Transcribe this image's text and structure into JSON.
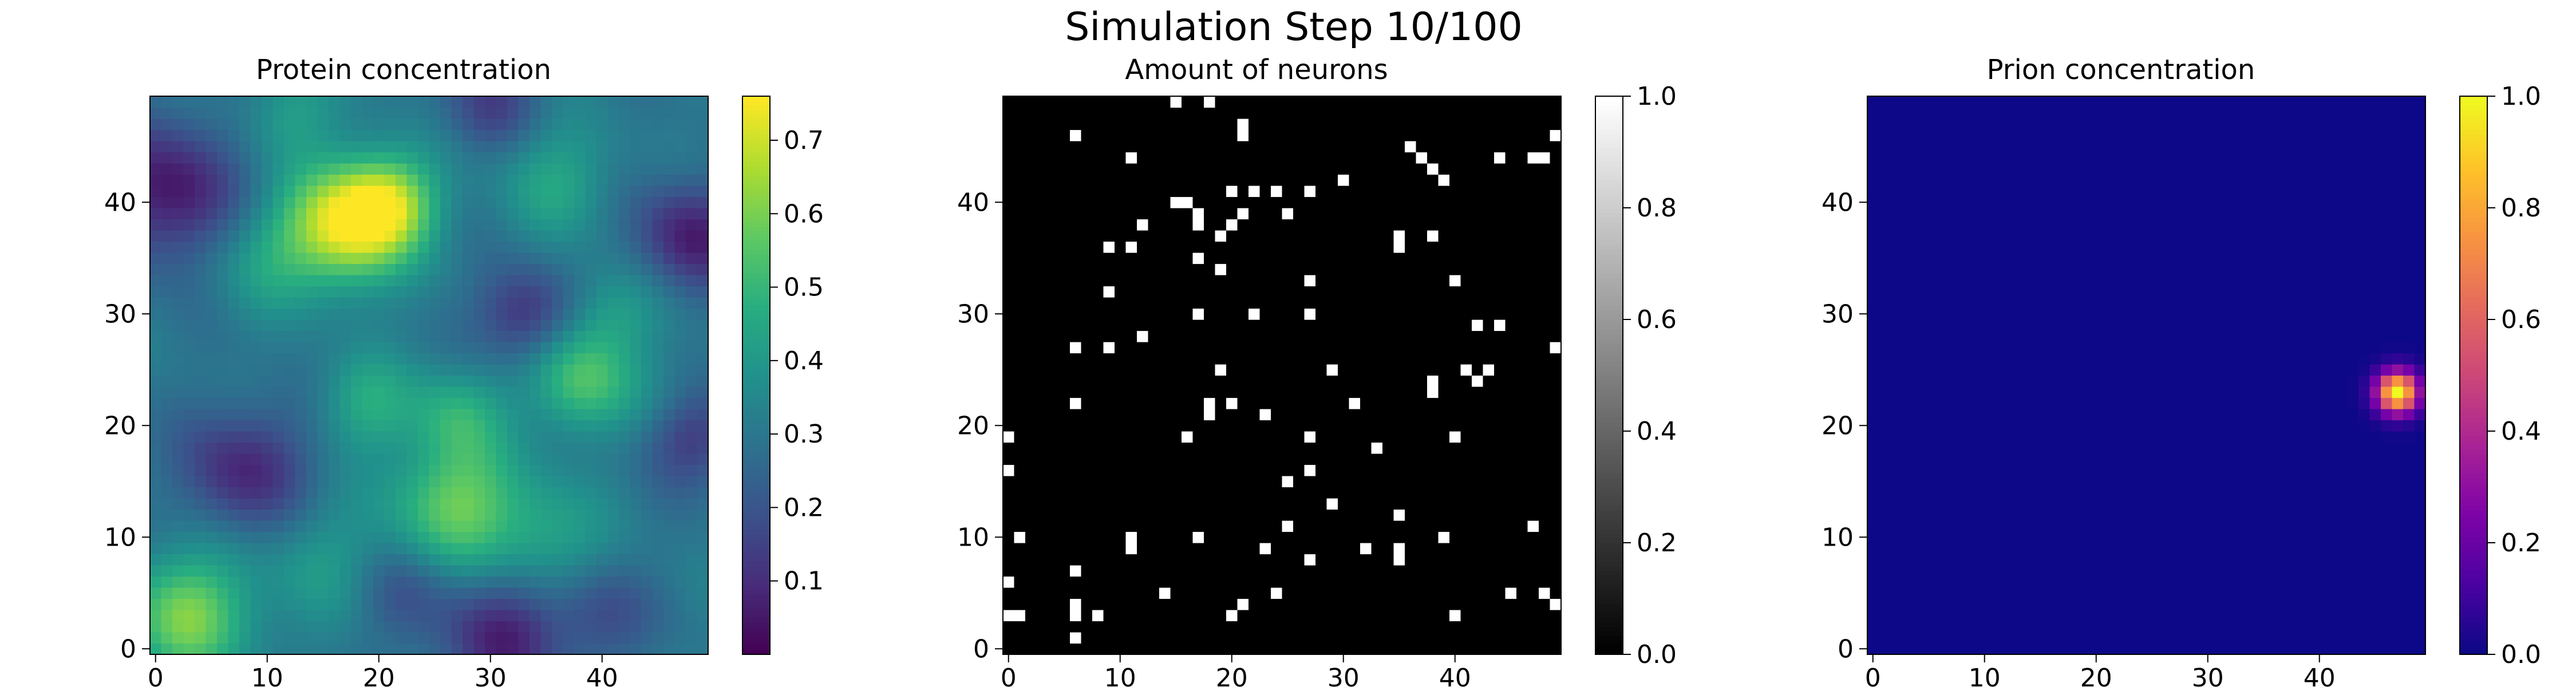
{
  "figure": {
    "suptitle": "Simulation Step 10/100"
  },
  "chart_data": [
    {
      "type": "heatmap",
      "title": "Protein concentration",
      "grid_size": [
        50,
        50
      ],
      "x_ticks": [
        0,
        10,
        20,
        30,
        40
      ],
      "y_ticks": [
        0,
        10,
        20,
        30,
        40
      ],
      "colormap": "viridis",
      "colorbar": {
        "range": [
          0.0,
          0.76
        ],
        "ticks": [
          "0.1",
          "0.2",
          "0.3",
          "0.4",
          "0.5",
          "0.6",
          "0.7"
        ]
      },
      "field": {
        "base": 0.3,
        "blobs": [
          {
            "x": 17,
            "y": 38,
            "amp": 0.42,
            "sigma": 3.8
          },
          {
            "x": 21,
            "y": 40,
            "amp": 0.3,
            "sigma": 3.0
          },
          {
            "x": 10,
            "y": 35,
            "amp": 0.12,
            "sigma": 3.5
          },
          {
            "x": 3,
            "y": 3,
            "amp": 0.3,
            "sigma": 4.0
          },
          {
            "x": 27,
            "y": 13,
            "amp": 0.28,
            "sigma": 4.0
          },
          {
            "x": 27,
            "y": 21,
            "amp": 0.16,
            "sigma": 3.0
          },
          {
            "x": 35,
            "y": 10,
            "amp": 0.14,
            "sigma": 3.5
          },
          {
            "x": 38,
            "y": 24,
            "amp": 0.24,
            "sigma": 3.2
          },
          {
            "x": 41,
            "y": 30,
            "amp": 0.12,
            "sigma": 3.0
          },
          {
            "x": 19,
            "y": 22,
            "amp": 0.16,
            "sigma": 3.0
          },
          {
            "x": 12,
            "y": 48,
            "amp": 0.12,
            "sigma": 3.0
          },
          {
            "x": 36,
            "y": 42,
            "amp": 0.14,
            "sigma": 3.5
          },
          {
            "x": 15,
            "y": 8,
            "amp": 0.1,
            "sigma": 4.0
          },
          {
            "x": 46,
            "y": 22,
            "amp": 0.05,
            "sigma": 3.0
          },
          {
            "x": 1,
            "y": 41,
            "amp": -0.26,
            "sigma": 4.5
          },
          {
            "x": 48,
            "y": 37,
            "amp": -0.24,
            "sigma": 3.5
          },
          {
            "x": 8,
            "y": 16,
            "amp": -0.22,
            "sigma": 4.0
          },
          {
            "x": 31,
            "y": 1,
            "amp": -0.22,
            "sigma": 4.0
          },
          {
            "x": 33,
            "y": 30,
            "amp": -0.2,
            "sigma": 3.0
          },
          {
            "x": 48,
            "y": 19,
            "amp": -0.18,
            "sigma": 3.0
          },
          {
            "x": 30,
            "y": 49,
            "amp": -0.15,
            "sigma": 3.0
          },
          {
            "x": 40,
            "y": 3,
            "amp": -0.12,
            "sigma": 3.0
          },
          {
            "x": 22,
            "y": 5,
            "amp": -0.1,
            "sigma": 3.0
          }
        ]
      }
    },
    {
      "type": "heatmap",
      "title": "Amount of neurons",
      "grid_size": [
        50,
        50
      ],
      "x_ticks": [
        0,
        10,
        20,
        30,
        40
      ],
      "y_ticks": [
        0,
        10,
        20,
        30,
        40
      ],
      "colormap": "gray",
      "colorbar": {
        "range": [
          0.0,
          1.0
        ],
        "ticks": [
          "0.0",
          "0.2",
          "0.4",
          "0.6",
          "0.8",
          "1.0"
        ]
      },
      "background_value": 0.0,
      "cells_value": 1.0,
      "cells": [
        [
          15,
          49
        ],
        [
          18,
          49
        ],
        [
          21,
          47
        ],
        [
          21,
          46
        ],
        [
          49,
          46
        ],
        [
          6,
          46
        ],
        [
          36,
          45
        ],
        [
          44,
          44
        ],
        [
          47,
          44
        ],
        [
          48,
          44
        ],
        [
          11,
          44
        ],
        [
          37,
          44
        ],
        [
          38,
          43
        ],
        [
          39,
          42
        ],
        [
          30,
          42
        ],
        [
          20,
          41
        ],
        [
          22,
          41
        ],
        [
          24,
          41
        ],
        [
          27,
          41
        ],
        [
          15,
          40
        ],
        [
          16,
          40
        ],
        [
          17,
          39
        ],
        [
          17,
          38
        ],
        [
          20,
          38
        ],
        [
          25,
          39
        ],
        [
          12,
          38
        ],
        [
          21,
          39
        ],
        [
          19,
          37
        ],
        [
          35,
          37
        ],
        [
          38,
          37
        ],
        [
          35,
          36
        ],
        [
          9,
          36
        ],
        [
          11,
          36
        ],
        [
          17,
          35
        ],
        [
          19,
          34
        ],
        [
          27,
          33
        ],
        [
          40,
          33
        ],
        [
          9,
          32
        ],
        [
          42,
          29
        ],
        [
          44,
          29
        ],
        [
          17,
          30
        ],
        [
          22,
          30
        ],
        [
          27,
          30
        ],
        [
          12,
          28
        ],
        [
          6,
          27
        ],
        [
          9,
          27
        ],
        [
          49,
          27
        ],
        [
          19,
          25
        ],
        [
          29,
          25
        ],
        [
          41,
          25
        ],
        [
          43,
          25
        ],
        [
          42,
          24
        ],
        [
          38,
          24
        ],
        [
          38,
          23
        ],
        [
          6,
          22
        ],
        [
          18,
          22
        ],
        [
          18,
          21
        ],
        [
          20,
          22
        ],
        [
          23,
          21
        ],
        [
          31,
          22
        ],
        [
          0,
          19
        ],
        [
          16,
          19
        ],
        [
          27,
          19
        ],
        [
          40,
          19
        ],
        [
          33,
          18
        ],
        [
          0,
          16
        ],
        [
          27,
          16
        ],
        [
          25,
          15
        ],
        [
          29,
          13
        ],
        [
          35,
          12
        ],
        [
          25,
          11
        ],
        [
          11,
          10
        ],
        [
          11,
          9
        ],
        [
          1,
          10
        ],
        [
          17,
          10
        ],
        [
          23,
          9
        ],
        [
          35,
          9
        ],
        [
          32,
          9
        ],
        [
          35,
          8
        ],
        [
          39,
          10
        ],
        [
          47,
          11
        ],
        [
          27,
          8
        ],
        [
          6,
          7
        ],
        [
          0,
          6
        ],
        [
          6,
          4
        ],
        [
          6,
          3
        ],
        [
          8,
          3
        ],
        [
          0,
          3
        ],
        [
          1,
          3
        ],
        [
          20,
          3
        ],
        [
          21,
          4
        ],
        [
          24,
          5
        ],
        [
          14,
          5
        ],
        [
          40,
          3
        ],
        [
          45,
          5
        ],
        [
          48,
          5
        ],
        [
          49,
          4
        ],
        [
          6,
          1
        ]
      ]
    },
    {
      "type": "heatmap",
      "title": "Prion concentration",
      "grid_size": [
        50,
        50
      ],
      "x_ticks": [
        0,
        10,
        20,
        30,
        40
      ],
      "y_ticks": [
        0,
        10,
        20,
        30,
        40
      ],
      "colormap": "plasma",
      "colorbar": {
        "range": [
          0.0,
          1.0
        ],
        "ticks": [
          "0.0",
          "0.2",
          "0.4",
          "0.6",
          "0.8",
          "1.0"
        ]
      },
      "background_value": 0.0,
      "peak": {
        "x": 47,
        "y": 23,
        "value": 1.0,
        "sigma": 1.3
      }
    }
  ]
}
